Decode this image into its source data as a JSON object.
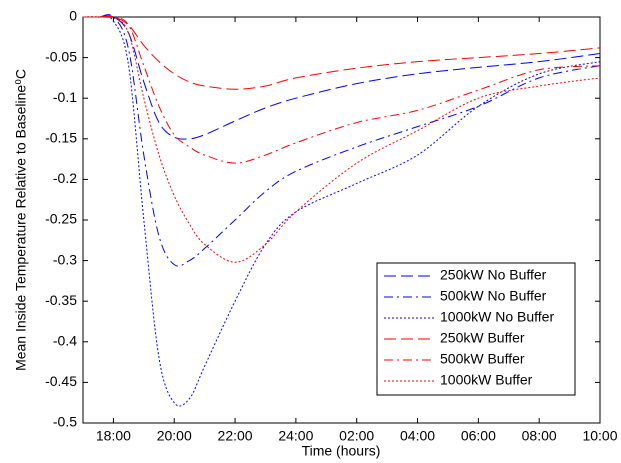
{
  "chart_data": {
    "type": "line",
    "xlabel": "Time (hours)",
    "ylabel": "Mean Inside Temperature Relative to Baseline⁰C",
    "x": [
      17,
      17.5,
      18,
      18.5,
      19,
      19.5,
      20,
      20.5,
      21,
      22,
      23,
      24,
      26,
      28,
      30,
      32,
      34
    ],
    "xlim": [
      17,
      34
    ],
    "xticks": [
      {
        "value": 18,
        "label": "18:00"
      },
      {
        "value": 20,
        "label": "20:00"
      },
      {
        "value": 22,
        "label": "22:00"
      },
      {
        "value": 24,
        "label": "24:00"
      },
      {
        "value": 26,
        "label": "02:00"
      },
      {
        "value": 28,
        "label": "04:00"
      },
      {
        "value": 30,
        "label": "06:00"
      },
      {
        "value": 32,
        "label": "08:00"
      },
      {
        "value": 34,
        "label": "10:00"
      }
    ],
    "ylim": [
      -0.5,
      0
    ],
    "yticks": [
      0,
      -0.05,
      -0.1,
      -0.15,
      -0.2,
      -0.25,
      -0.3,
      -0.35,
      -0.4,
      -0.45,
      -0.5
    ],
    "legend": "lower right",
    "series": [
      {
        "name": "250kW No Buffer",
        "color": "#0000ff",
        "linestyle": "--",
        "values": [
          0,
          0,
          0,
          -0.02,
          -0.08,
          -0.13,
          -0.148,
          -0.15,
          -0.145,
          -0.128,
          -0.112,
          -0.1,
          -0.082,
          -0.07,
          -0.062,
          -0.055,
          -0.045
        ]
      },
      {
        "name": "500kW No Buffer",
        "color": "#0000ff",
        "linestyle": "-.",
        "values": [
          0,
          0,
          0,
          -0.04,
          -0.17,
          -0.27,
          -0.305,
          -0.3,
          -0.285,
          -0.25,
          -0.215,
          -0.19,
          -0.16,
          -0.135,
          -0.11,
          -0.075,
          -0.06
        ]
      },
      {
        "name": "1000kW No Buffer",
        "color": "#0000ff",
        "linestyle": ":",
        "values": [
          0,
          0,
          -0.005,
          -0.06,
          -0.25,
          -0.42,
          -0.475,
          -0.47,
          -0.43,
          -0.35,
          -0.28,
          -0.24,
          -0.205,
          -0.17,
          -0.11,
          -0.07,
          -0.055
        ]
      },
      {
        "name": "250kW Buffer",
        "color": "#ff0000",
        "linestyle": "--",
        "values": [
          0,
          0,
          0,
          -0.01,
          -0.035,
          -0.055,
          -0.07,
          -0.08,
          -0.085,
          -0.089,
          -0.085,
          -0.075,
          -0.063,
          -0.055,
          -0.05,
          -0.045,
          -0.038
        ]
      },
      {
        "name": "500kW Buffer",
        "color": "#ff0000",
        "linestyle": "-.",
        "values": [
          0,
          0,
          0,
          -0.01,
          -0.06,
          -0.11,
          -0.145,
          -0.16,
          -0.17,
          -0.18,
          -0.17,
          -0.155,
          -0.13,
          -0.115,
          -0.09,
          -0.065,
          -0.06
        ]
      },
      {
        "name": "1000kW Buffer",
        "color": "#ff0000",
        "linestyle": ":",
        "values": [
          0,
          0,
          0,
          -0.02,
          -0.1,
          -0.17,
          -0.22,
          -0.255,
          -0.28,
          -0.302,
          -0.28,
          -0.24,
          -0.18,
          -0.14,
          -0.1,
          -0.085,
          -0.075
        ]
      }
    ]
  }
}
